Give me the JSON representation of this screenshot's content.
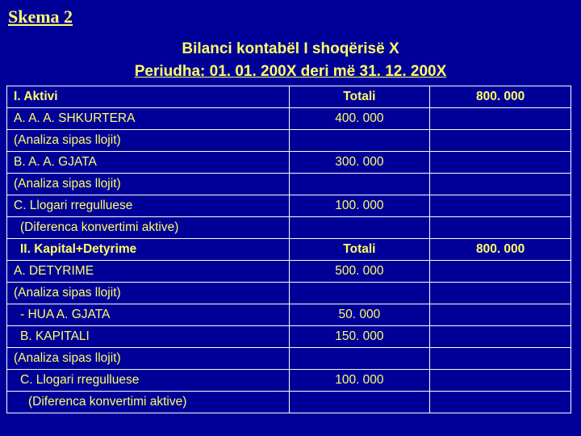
{
  "page_title": "Skema 2",
  "subtitle": "Bilanci kontabël I shoqërisë X",
  "period": "Periudha: 01. 01. 200X deri më 31. 12. 200X",
  "rows": [
    {
      "c1": "I.  Aktivi",
      "c2": "Totali",
      "c3": "800. 000",
      "bold": true,
      "ind": 0
    },
    {
      "c1": "A.   A. A. SHKURTERA",
      "c2": "400. 000",
      "c3": "",
      "bold": false,
      "ind": 0
    },
    {
      "c1": "(Analiza sipas llojit)",
      "c2": "",
      "c3": "",
      "bold": false,
      "ind": 0
    },
    {
      "c1": "B.   A. A. GJATA",
      "c2": "300. 000",
      "c3": "",
      "bold": false,
      "ind": 0
    },
    {
      "c1": "(Analiza sipas llojit)",
      "c2": "",
      "c3": "",
      "bold": false,
      "ind": 0
    },
    {
      "c1": "C. Llogari rregulluese",
      "c2": "100. 000",
      "c3": "",
      "bold": false,
      "ind": 0
    },
    {
      "c1": "(Diferenca  konvertimi aktive)",
      "c2": "",
      "c3": "",
      "bold": false,
      "ind": 1
    },
    {
      "c1": "II.  Kapital+Detyrime",
      "c2": "Totali",
      "c3": "800. 000",
      "bold": true,
      "ind": 1
    },
    {
      "c1": "A. DETYRIME",
      "c2": "500. 000",
      "c3": "",
      "bold": false,
      "ind": 0
    },
    {
      "c1": "(Analiza sipas llojit)",
      "c2": "",
      "c3": "",
      "bold": false,
      "ind": 0
    },
    {
      "c1": "- HUA A. GJATA",
      "c2": "50. 000",
      "c3": "",
      "bold": false,
      "ind": 1
    },
    {
      "c1": "B. KAPITALI",
      "c2": "150. 000",
      "c3": "",
      "bold": false,
      "ind": 1
    },
    {
      "c1": "(Analiza sipas llojit)",
      "c2": "",
      "c3": "",
      "bold": false,
      "ind": 0
    },
    {
      "c1": "C. Llogari rregulluese",
      "c2": "100. 000",
      "c3": "",
      "bold": false,
      "ind": 1
    },
    {
      "c1": "(Diferenca konvertimi aktive)",
      "c2": "",
      "c3": "",
      "bold": false,
      "ind": 2
    }
  ],
  "colors": {
    "background": "#000099",
    "text": "#ffff66",
    "border": "#ffffff"
  }
}
